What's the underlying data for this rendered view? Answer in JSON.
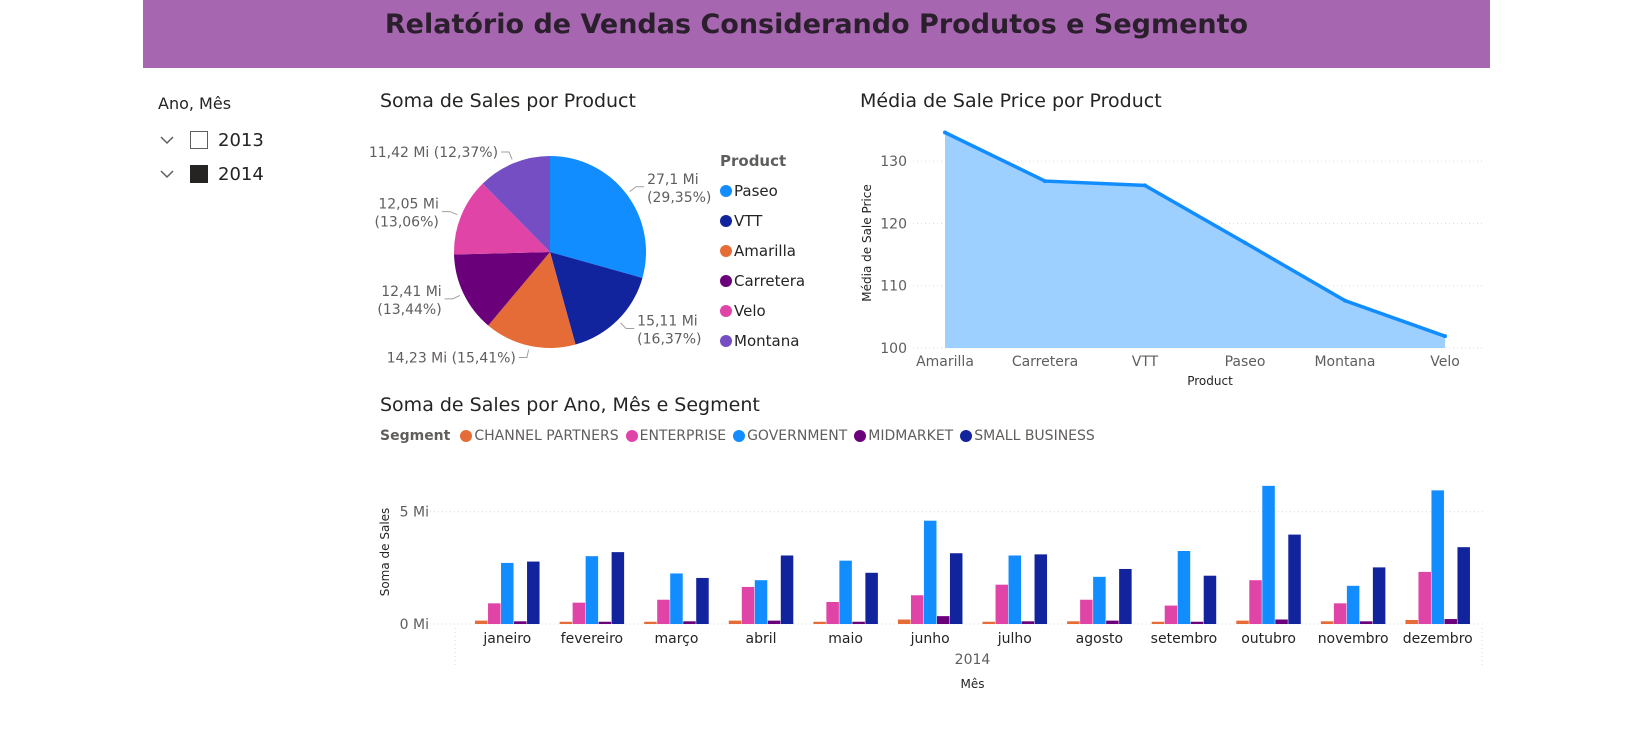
{
  "header": {
    "title": "Relatório de Vendas Considerando Produtos e Segmento"
  },
  "slicer": {
    "title": "Ano, Mês",
    "items": [
      {
        "label": "2013",
        "checked": false
      },
      {
        "label": "2014",
        "checked": true
      }
    ]
  },
  "chart_data": [
    {
      "type": "pie",
      "title": "Soma de Sales por Product",
      "legend_title": "Product",
      "legend_position": "right",
      "slices": [
        {
          "label": "Paseo",
          "value": 27.1,
          "display": "27,1 Mi (29,35%)",
          "line1": "27,1 Mi",
          "line2": "(29,35%)",
          "percent": 29.35,
          "color": "#118dff"
        },
        {
          "label": "VTT",
          "value": 15.11,
          "display": "15,11 Mi (16,37%)",
          "line1": "15,11 Mi",
          "line2": "(16,37%)",
          "percent": 16.37,
          "color": "#12239e"
        },
        {
          "label": "Amarilla",
          "value": 14.23,
          "display": "14,23 Mi (15,41%)",
          "line1": "14,23 Mi (15,41%)",
          "line2": "",
          "percent": 15.41,
          "color": "#e66c37"
        },
        {
          "label": "Carretera",
          "value": 12.41,
          "display": "12,41 Mi (13,44%)",
          "line1": "12,41 Mi",
          "line2": "(13,44%)",
          "percent": 13.44,
          "color": "#6b007b"
        },
        {
          "label": "Velo",
          "value": 12.05,
          "display": "12,05 Mi (13,06%)",
          "line1": "12,05 Mi",
          "line2": "(13,06%)",
          "percent": 13.06,
          "color": "#e044a7"
        },
        {
          "label": "Montana",
          "value": 11.42,
          "display": "11,42 Mi (12,37%)",
          "line1": "11,42 Mi (12,37%)",
          "line2": "",
          "percent": 12.37,
          "color": "#744ec2"
        }
      ]
    },
    {
      "type": "area",
      "title": "Média de Sale Price por Product",
      "xlabel": "Product",
      "ylabel": "Média de Sale Price",
      "categories": [
        "Amarilla",
        "Carretera",
        "VTT",
        "Paseo",
        "Montana",
        "Velo"
      ],
      "values": [
        134.6,
        126.8,
        126.1,
        116.9,
        107.6,
        101.9
      ],
      "ylim": [
        100,
        135
      ],
      "yticks": [
        100,
        110,
        120,
        130
      ],
      "grid": true,
      "line_color": "#118dff",
      "fill_color": "#9dd0fe"
    },
    {
      "type": "bar",
      "title": "Soma de Sales por Ano, Mês e Segment",
      "legend_title": "Segment",
      "legend_position": "top-left",
      "xlabel": "Mês",
      "x_group_label": "2014",
      "ylabel": "Soma de Sales",
      "ylim": [
        0,
        6.5
      ],
      "yticks": [
        {
          "value": 0,
          "label": "0 Mi"
        },
        {
          "value": 5,
          "label": "5 Mi"
        }
      ],
      "categories": [
        "janeiro",
        "fevereiro",
        "março",
        "abril",
        "maio",
        "junho",
        "julho",
        "agosto",
        "setembro",
        "outubro",
        "novembro",
        "dezembro"
      ],
      "series": [
        {
          "name": "CHANNEL PARTNERS",
          "color": "#e66c37",
          "values": [
            0.15,
            0.1,
            0.1,
            0.15,
            0.1,
            0.2,
            0.1,
            0.12,
            0.1,
            0.15,
            0.12,
            0.18
          ]
        },
        {
          "name": "ENTERPRISE",
          "color": "#e044a7",
          "values": [
            0.92,
            0.95,
            1.08,
            1.65,
            0.98,
            1.28,
            1.75,
            1.08,
            0.82,
            1.95,
            0.92,
            2.32
          ]
        },
        {
          "name": "GOVERNMENT",
          "color": "#118dff",
          "values": [
            2.72,
            3.02,
            2.25,
            1.95,
            2.82,
            4.6,
            3.05,
            2.1,
            3.25,
            6.15,
            1.7,
            5.95
          ]
        },
        {
          "name": "MIDMARKET",
          "color": "#6b007b",
          "values": [
            0.12,
            0.1,
            0.12,
            0.15,
            0.1,
            0.35,
            0.12,
            0.15,
            0.1,
            0.2,
            0.12,
            0.22
          ]
        },
        {
          "name": "SMALL BUSINESS",
          "color": "#12239e",
          "values": [
            2.78,
            3.2,
            2.05,
            3.05,
            2.28,
            3.15,
            3.1,
            2.45,
            2.15,
            3.98,
            2.52,
            3.42
          ]
        }
      ]
    }
  ]
}
